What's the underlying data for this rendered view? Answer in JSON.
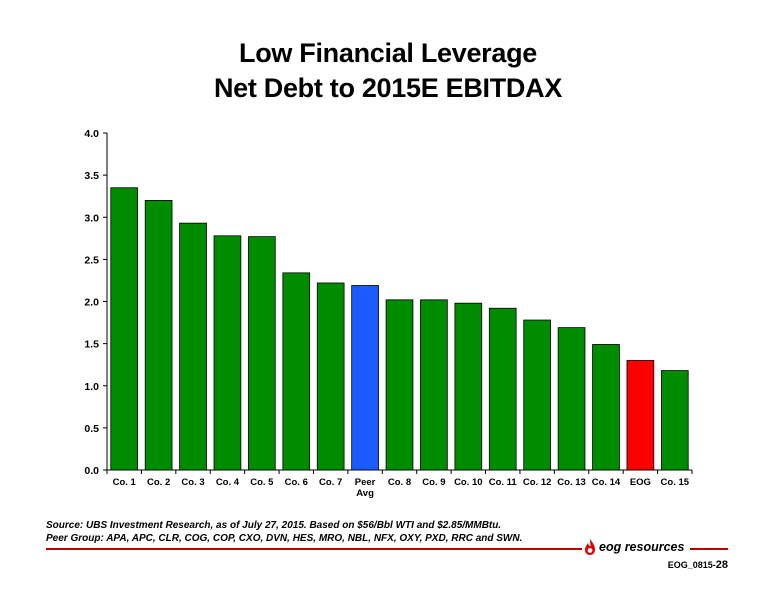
{
  "title_lines": [
    "Low Financial Leverage",
    "Net Debt to 2015E EBITDAX"
  ],
  "footnotes": [
    "Source: UBS Investment Research, as of July 27, 2015. Based on $56/Bbl WTI and $2.85/MMBtu.",
    "Peer Group: APA, APC, CLR, COG, COP, CXO, DVN, HES, MRO, NBL, NFX, OXY, PXD, RRC and SWN."
  ],
  "logo_text": "eog resources",
  "slide_id_prefix": "EOG_0815-",
  "slide_id_number": "28",
  "colors": {
    "peer": "#008c00",
    "peer_avg": "#1a5aff",
    "eog": "#ff0000",
    "rule": "#c00000"
  },
  "chart_data": {
    "type": "bar",
    "title": "Low Financial Leverage Net Debt to 2015E EBITDAX",
    "categories": [
      "Co. 1",
      "Co. 2",
      "Co. 3",
      "Co. 4",
      "Co. 5",
      "Co. 6",
      "Co. 7",
      "Peer Avg",
      "Co. 8",
      "Co. 9",
      "Co. 10",
      "Co. 11",
      "Co. 12",
      "Co. 13",
      "Co. 14",
      "EOG",
      "Co. 15"
    ],
    "values": [
      3.35,
      3.2,
      2.93,
      2.78,
      2.77,
      2.34,
      2.22,
      2.19,
      2.02,
      2.02,
      1.98,
      1.92,
      1.78,
      1.69,
      1.49,
      1.3,
      1.18
    ],
    "bar_colors": [
      "#008c00",
      "#008c00",
      "#008c00",
      "#008c00",
      "#008c00",
      "#008c00",
      "#008c00",
      "#1a5aff",
      "#008c00",
      "#008c00",
      "#008c00",
      "#008c00",
      "#008c00",
      "#008c00",
      "#008c00",
      "#ff0000",
      "#008c00"
    ],
    "yticks": [
      "0.0",
      "0.5",
      "1.0",
      "1.5",
      "2.0",
      "2.5",
      "3.0",
      "3.5",
      "4.0"
    ],
    "ylim": [
      0,
      4.0
    ],
    "xlabel": "",
    "ylabel": "",
    "grid": false,
    "legend": "none"
  }
}
